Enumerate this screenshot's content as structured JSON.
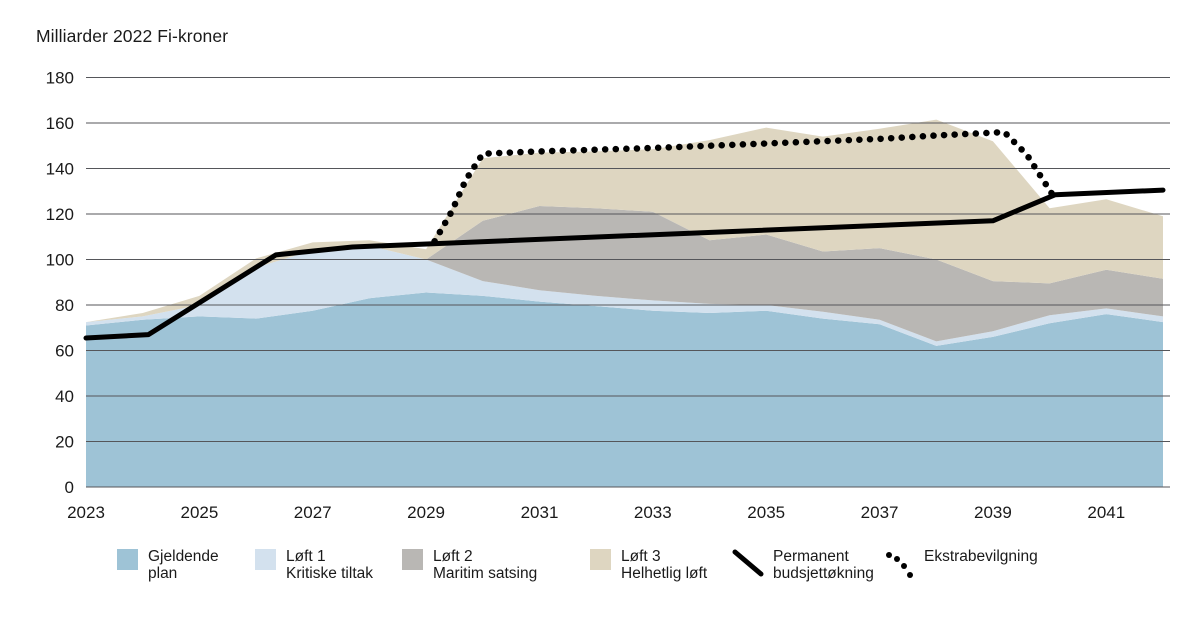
{
  "title": "Milliarder 2022 Fi-kroner",
  "colors": {
    "gjeldende": "#9ec3d6",
    "loft1": "#d3e1ee",
    "loft2": "#b9b7b4",
    "loft3": "#ded6c1",
    "line": "#000000",
    "grid": "#55565a",
    "text": "#1a1a1a",
    "background": "#ffffff"
  },
  "legend": {
    "items": [
      {
        "line1": "Gjeldende",
        "line2": "plan",
        "swatch": "gjeldende"
      },
      {
        "line1": "Løft 1",
        "line2": "Kritiske tiltak",
        "swatch": "loft1"
      },
      {
        "line1": "Løft 2",
        "line2": "Maritim satsing",
        "swatch": "loft2"
      },
      {
        "line1": "Løft 3",
        "line2": "Helhetlig løft",
        "swatch": "loft3"
      },
      {
        "line1": "Permanent",
        "line2": "budsjettøkning",
        "symbol": "solid-line"
      },
      {
        "line1": "Ekstrabevilgning",
        "line2": "",
        "symbol": "dotted-line"
      }
    ]
  },
  "chart_data": {
    "type": "area",
    "title": "Milliarder 2022 Fi-kroner",
    "xlabel": "",
    "ylabel": "Milliarder 2022 Fi-kroner",
    "x": [
      2023,
      2024,
      2025,
      2026,
      2027,
      2028,
      2029,
      2030,
      2031,
      2032,
      2033,
      2034,
      2035,
      2036,
      2037,
      2038,
      2039,
      2040,
      2041,
      2042
    ],
    "x_ticks": [
      "2023",
      "2025",
      "2027",
      "2029",
      "2031",
      "2033",
      "2035",
      "2037",
      "2039",
      "2041"
    ],
    "y_ticks": [
      "0",
      "20",
      "40",
      "60",
      "80",
      "100",
      "120",
      "140",
      "160",
      "180"
    ],
    "ylim": [
      0,
      180
    ],
    "grid": true,
    "legend_position": "bottom",
    "series": [
      {
        "name": "Gjeldende plan",
        "type": "area",
        "stack": true,
        "color_key": "gjeldende",
        "values": [
          71,
          73.5,
          75,
          74,
          77.5,
          83,
          85.5,
          84,
          81.5,
          79.5,
          77.5,
          76.5,
          77.5,
          74,
          71.5,
          62,
          66,
          72,
          76,
          72.5
        ]
      },
      {
        "name": "Løft 1 Kritiske tiltak",
        "type": "area",
        "stack": true,
        "color_key": "loft1",
        "values": [
          1.5,
          1.5,
          5,
          22.5,
          26.5,
          23,
          14.5,
          6.5,
          5,
          4.5,
          4.5,
          4,
          2.5,
          3,
          2,
          2,
          2.5,
          3.5,
          2.5,
          2.5
        ]
      },
      {
        "name": "Løft 2 Maritim satsing",
        "type": "area",
        "stack": true,
        "color_key": "loft2",
        "values": [
          0,
          0,
          0,
          0,
          0,
          0,
          0,
          26.5,
          37,
          38.5,
          39,
          28,
          31,
          26.5,
          31.5,
          36,
          22,
          14,
          17,
          16.5
        ]
      },
      {
        "name": "Løft 3 Helhetlig løft",
        "type": "area",
        "stack": true,
        "color_key": "loft3",
        "values": [
          0,
          1.5,
          4,
          4,
          3.5,
          2.5,
          4.5,
          27.5,
          23.5,
          25,
          27.5,
          44,
          47,
          50.5,
          52.5,
          61.5,
          61.5,
          33,
          31,
          27.5
        ]
      },
      {
        "name": "Permanent budsjettøkning",
        "type": "line",
        "style": "solid",
        "color_key": "line",
        "points": [
          [
            2023,
            65.5
          ],
          [
            2024.1,
            67
          ],
          [
            2026.35,
            102
          ],
          [
            2027.7,
            105.5
          ],
          [
            2039,
            117
          ],
          [
            2040.1,
            128.5
          ],
          [
            2042,
            130.5
          ]
        ]
      },
      {
        "name": "Ekstrabevilgning",
        "type": "line",
        "style": "dotted",
        "color_key": "line",
        "points": [
          [
            2029.15,
            108
          ],
          [
            2029.45,
            121
          ],
          [
            2029.7,
            135
          ],
          [
            2030,
            146.5
          ],
          [
            2031,
            147.5
          ],
          [
            2033,
            149
          ],
          [
            2035,
            151
          ],
          [
            2037,
            153
          ],
          [
            2038,
            154.5
          ],
          [
            2039.2,
            156
          ],
          [
            2039.6,
            146
          ],
          [
            2040.05,
            128.5
          ]
        ]
      }
    ]
  }
}
